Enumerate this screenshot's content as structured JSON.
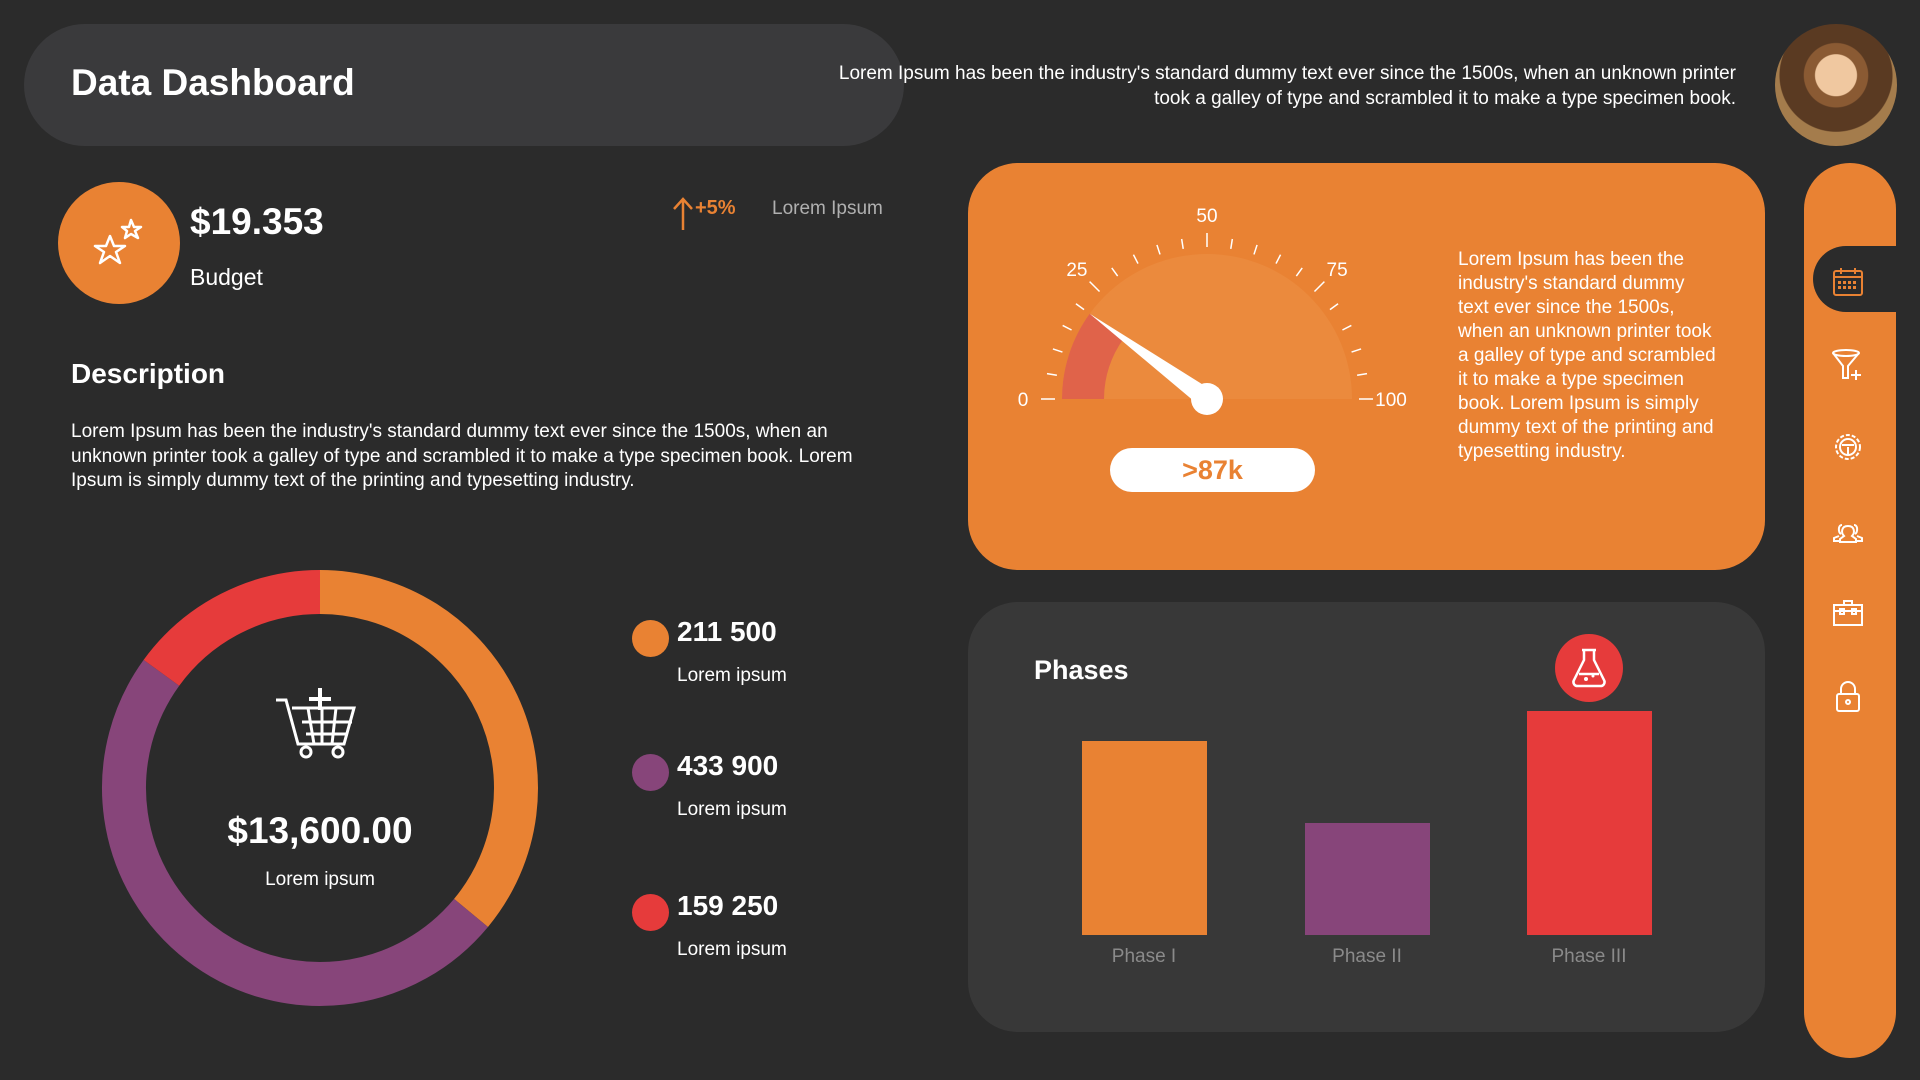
{
  "header": {
    "title": "Data Dashboard",
    "intro": "Lorem Ipsum has been the industry's standard dummy text ever since the 1500s, when an unknown printer took a galley of type and scrambled it to make a type specimen book."
  },
  "budget": {
    "value": "$19.353",
    "label": "Budget",
    "change": "+5%",
    "change_label": "Lorem Ipsum",
    "icon": "stars-icon"
  },
  "description": {
    "title": "Description",
    "text": "Lorem Ipsum has been the industry's standard dummy text ever since the 1500s, when an unknown printer took a galley of type and scrambled it to make a type specimen book. Lorem Ipsum is simply dummy text of the printing and typesetting industry."
  },
  "donut": {
    "total": "$13,600.00",
    "label": "Lorem ipsum",
    "icon": "cart-plus-icon",
    "segments": [
      {
        "color": "#e98233",
        "fraction": 0.36
      },
      {
        "color": "#87457a",
        "fraction": 0.49
      },
      {
        "color": "#e63b3b",
        "fraction": 0.15
      }
    ]
  },
  "legend": [
    {
      "value": "211 500",
      "label": "Lorem ipsum",
      "color": "#e98233"
    },
    {
      "value": "433 900",
      "label": "Lorem ipsum",
      "color": "#87457a"
    },
    {
      "value": "159 250",
      "label": "Lorem ipsum",
      "color": "#e63b3b"
    }
  ],
  "gauge": {
    "ticks": [
      "0",
      "25",
      "50",
      "75",
      "100"
    ],
    "value": 20,
    "min": 0,
    "max": 100,
    "readout": ">87k",
    "text": "Lorem Ipsum has been the industry's standard dummy text ever since the 1500s, when an unknown printer took a galley of type and scrambled it to make a type specimen book. Lorem Ipsum is simply dummy text of the printing and typesetting industry."
  },
  "chart_data": {
    "type": "bar",
    "title": "Phases",
    "categories": [
      "Phase I",
      "Phase II",
      "Phase III"
    ],
    "values": [
      0.71,
      0.41,
      0.82
    ],
    "colors": [
      "#e98233",
      "#87457a",
      "#e63b3b"
    ],
    "highlight_icon": "flask-icon"
  },
  "sidebar": {
    "items": [
      "calendar-icon",
      "funnel-plus-icon",
      "gear-steering-icon",
      "users-icon",
      "briefcase-icon",
      "lock-icon"
    ],
    "active": 0
  },
  "colors": {
    "background": "#2b2b2b",
    "accent": "#e98233",
    "purple": "#87457a",
    "red": "#e63b3b"
  }
}
